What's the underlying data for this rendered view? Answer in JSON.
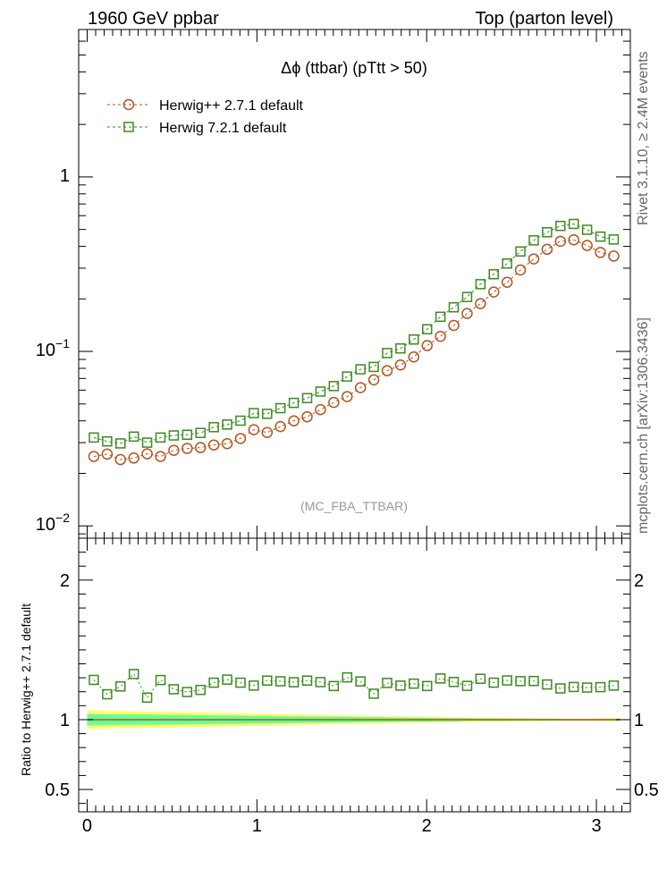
{
  "header": {
    "left_label": "1960 GeV ppbar",
    "right_label": "Top (parton level)"
  },
  "side": {
    "rivet_label": "Rivet 3.1.10, ≥ 2.4M events",
    "mcplots_label": "mcplots.cern.ch [arXiv:1306.3436]"
  },
  "colors": {
    "herwigpp": "#b3541e",
    "herwig7": "#3a8a1e",
    "band_yellow": "#ffff66",
    "band_green": "#66ff99"
  },
  "chart_data": [
    {
      "type": "line",
      "scale": "log",
      "title": "Δϕ (ttbar) (pTtt > 50)",
      "watermark": "(MC_FBA_TTBAR)",
      "xlim": [
        -0.05,
        3.2
      ],
      "ylim": [
        0.0085,
        7.0
      ],
      "y_tick_labels": [
        "10^-2",
        "10^-1",
        "1"
      ],
      "x": [
        0.0393,
        0.1178,
        0.1963,
        0.2749,
        0.3534,
        0.432,
        0.5105,
        0.589,
        0.6676,
        0.7461,
        0.8247,
        0.9032,
        0.9817,
        1.0603,
        1.1388,
        1.2174,
        1.2959,
        1.3744,
        1.453,
        1.5315,
        1.6101,
        1.6886,
        1.7671,
        1.8457,
        1.9242,
        2.0028,
        2.0813,
        2.1598,
        2.2384,
        2.3169,
        2.3955,
        2.474,
        2.5525,
        2.6311,
        2.7096,
        2.7882,
        2.8667,
        2.9452,
        3.0238,
        3.1023
      ],
      "series": [
        {
          "name": "Herwig++ 2.7.1 default",
          "marker": "circle",
          "values": [
            0.025,
            0.0258,
            0.024,
            0.0245,
            0.0259,
            0.025,
            0.0271,
            0.0278,
            0.0281,
            0.0291,
            0.0296,
            0.0317,
            0.0356,
            0.0343,
            0.0371,
            0.04,
            0.0422,
            0.0464,
            0.051,
            0.0551,
            0.062,
            0.0687,
            0.0775,
            0.0836,
            0.093,
            0.108,
            0.122,
            0.141,
            0.165,
            0.188,
            0.219,
            0.249,
            0.293,
            0.339,
            0.385,
            0.428,
            0.436,
            0.405,
            0.369,
            0.352
          ]
        },
        {
          "name": "Herwig 7.2.1 default",
          "marker": "square",
          "values": [
            0.0321,
            0.0305,
            0.0297,
            0.0325,
            0.03,
            0.0321,
            0.033,
            0.0333,
            0.0341,
            0.0368,
            0.0381,
            0.0401,
            0.0443,
            0.0439,
            0.0473,
            0.0507,
            0.054,
            0.0589,
            0.0633,
            0.0718,
            0.079,
            0.0815,
            0.0979,
            0.104,
            0.117,
            0.134,
            0.158,
            0.179,
            0.205,
            0.243,
            0.277,
            0.319,
            0.374,
            0.433,
            0.482,
            0.524,
            0.538,
            0.498,
            0.455,
            0.438
          ]
        }
      ]
    },
    {
      "type": "line",
      "ylabel": "Ratio to Herwig++ 2.7.1 default",
      "xlim": [
        -0.05,
        3.2
      ],
      "ylim": [
        0.34,
        2.3
      ],
      "y_ticks": [
        0.5,
        1,
        2
      ],
      "y_tick_labels": [
        "0.5",
        "1",
        "2"
      ],
      "x_ticks": [
        0,
        1,
        2,
        3
      ],
      "x_tick_labels": [
        "0",
        "1",
        "2",
        "3"
      ],
      "reference": 1.0,
      "band_yellow": [
        0.065,
        0.062,
        0.06,
        0.06,
        0.058,
        0.057,
        0.055,
        0.053,
        0.052,
        0.05,
        0.048,
        0.046,
        0.043,
        0.043,
        0.04,
        0.038,
        0.037,
        0.035,
        0.033,
        0.031,
        0.029,
        0.028,
        0.026,
        0.024,
        0.022,
        0.021,
        0.019,
        0.017,
        0.016,
        0.015,
        0.014,
        0.013,
        0.012,
        0.011,
        0.01,
        0.009,
        0.009,
        0.009,
        0.01,
        0.01
      ],
      "band_green": [
        0.04,
        0.038,
        0.037,
        0.037,
        0.036,
        0.035,
        0.034,
        0.033,
        0.032,
        0.031,
        0.03,
        0.029,
        0.027,
        0.027,
        0.025,
        0.024,
        0.023,
        0.022,
        0.021,
        0.02,
        0.018,
        0.017,
        0.016,
        0.015,
        0.014,
        0.013,
        0.012,
        0.011,
        0.01,
        0.009,
        0.009,
        0.008,
        0.008,
        0.007,
        0.007,
        0.006,
        0.006,
        0.006,
        0.006,
        0.006
      ],
      "series": [
        {
          "name": "Herwig 7.2.1 / Herwig++ 2.7.1",
          "marker": "square",
          "values": [
            1.285,
            1.182,
            1.238,
            1.327,
            1.158,
            1.284,
            1.218,
            1.198,
            1.213,
            1.265,
            1.287,
            1.265,
            1.244,
            1.28,
            1.275,
            1.268,
            1.28,
            1.269,
            1.241,
            1.303,
            1.274,
            1.186,
            1.263,
            1.244,
            1.258,
            1.241,
            1.295,
            1.27,
            1.242,
            1.293,
            1.265,
            1.281,
            1.276,
            1.277,
            1.252,
            1.224,
            1.234,
            1.23,
            1.233,
            1.244
          ]
        }
      ]
    }
  ]
}
